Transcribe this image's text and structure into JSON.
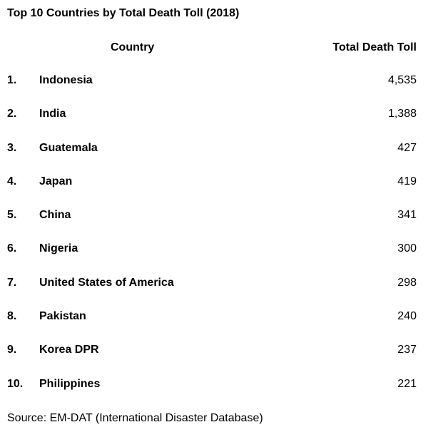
{
  "chart_data": {
    "type": "table",
    "title": "Top 10 Countries by Total Death Toll (2018)",
    "columns": [
      "Country",
      "Total Death Toll"
    ],
    "rows": [
      {
        "rank": "1.",
        "country": "Indonesia",
        "value": "4,535"
      },
      {
        "rank": "2.",
        "country": "India",
        "value": "1,388"
      },
      {
        "rank": "3.",
        "country": "Guatemala",
        "value": "427"
      },
      {
        "rank": "4.",
        "country": "Japan",
        "value": "419"
      },
      {
        "rank": "5.",
        "country": "China",
        "value": "341"
      },
      {
        "rank": "6.",
        "country": "Nigeria",
        "value": "300"
      },
      {
        "rank": "7.",
        "country": "United States of America",
        "value": "298"
      },
      {
        "rank": "8.",
        "country": "Pakistan",
        "value": "240"
      },
      {
        "rank": "9.",
        "country": "Korea DPR",
        "value": "237"
      },
      {
        "rank": "10.",
        "country": "Philippines",
        "value": "221"
      }
    ],
    "source": "Source: EM-DAT (International Disaster Database)"
  }
}
